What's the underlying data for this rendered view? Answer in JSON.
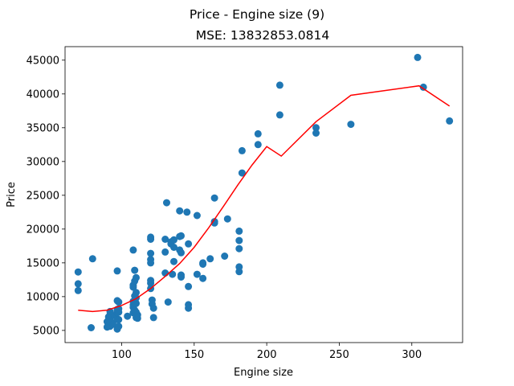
{
  "chart_data": {
    "type": "scatter",
    "title": "Price - Engine size (9)",
    "subtitle": "MSE: 13832853.0814",
    "xlabel": "Engine size",
    "ylabel": "Price",
    "xlim": [
      61,
      335
    ],
    "ylim": [
      3200,
      47000
    ],
    "xticks": [
      100,
      150,
      200,
      250,
      300
    ],
    "yticks": [
      5000,
      10000,
      15000,
      20000,
      25000,
      30000,
      35000,
      40000,
      45000
    ],
    "scatter_color": "#1f77b4",
    "line_color": "#ff0000",
    "series": [
      {
        "name": "data",
        "kind": "scatter",
        "points": [
          [
            70,
            13650
          ],
          [
            70,
            11900
          ],
          [
            70,
            10900
          ],
          [
            79,
            5400
          ],
          [
            80,
            15600
          ],
          [
            90,
            5500
          ],
          [
            90,
            6300
          ],
          [
            91,
            5700
          ],
          [
            91,
            7000
          ],
          [
            92,
            6800
          ],
          [
            92,
            5600
          ],
          [
            92,
            7300
          ],
          [
            92,
            7800
          ],
          [
            93,
            6200
          ],
          [
            94,
            5900
          ],
          [
            95,
            7200
          ],
          [
            97,
            7600
          ],
          [
            97,
            7900
          ],
          [
            97,
            6600
          ],
          [
            97,
            8100
          ],
          [
            97,
            5200
          ],
          [
            97,
            9400
          ],
          [
            97,
            13800
          ],
          [
            98,
            8200
          ],
          [
            98,
            6600
          ],
          [
            98,
            9200
          ],
          [
            98,
            7700
          ],
          [
            98,
            5600
          ],
          [
            104,
            7100
          ],
          [
            108,
            16900
          ],
          [
            108,
            11400
          ],
          [
            108,
            9300
          ],
          [
            108,
            8800
          ],
          [
            108,
            7600
          ],
          [
            108,
            11700
          ],
          [
            108,
            8400
          ],
          [
            109,
            13900
          ],
          [
            109,
            12300
          ],
          [
            109,
            10100
          ],
          [
            109,
            8000
          ],
          [
            110,
            9000
          ],
          [
            110,
            12800
          ],
          [
            110,
            10600
          ],
          [
            110,
            9800
          ],
          [
            110,
            7700
          ],
          [
            110,
            6900
          ],
          [
            111,
            7300
          ],
          [
            111,
            6800
          ],
          [
            120,
            18500
          ],
          [
            120,
            18800
          ],
          [
            120,
            16400
          ],
          [
            120,
            15500
          ],
          [
            120,
            15000
          ],
          [
            120,
            12400
          ],
          [
            120,
            11200
          ],
          [
            120,
            12000
          ],
          [
            121,
            9500
          ],
          [
            121,
            8900
          ],
          [
            122,
            6900
          ],
          [
            122,
            8300
          ],
          [
            130,
            18500
          ],
          [
            130,
            16600
          ],
          [
            130,
            13500
          ],
          [
            131,
            23900
          ],
          [
            132,
            9200
          ],
          [
            134,
            18100
          ],
          [
            134,
            17800
          ],
          [
            135,
            13300
          ],
          [
            136,
            17300
          ],
          [
            136,
            15200
          ],
          [
            136,
            18400
          ],
          [
            140,
            22700
          ],
          [
            140,
            18900
          ],
          [
            140,
            16900
          ],
          [
            141,
            19000
          ],
          [
            141,
            13200
          ],
          [
            141,
            16500
          ],
          [
            141,
            12900
          ],
          [
            145,
            22500
          ],
          [
            146,
            17800
          ],
          [
            146,
            11500
          ],
          [
            146,
            8800
          ],
          [
            146,
            8300
          ],
          [
            152,
            22000
          ],
          [
            152,
            13300
          ],
          [
            156,
            15000
          ],
          [
            156,
            14800
          ],
          [
            156,
            12700
          ],
          [
            161,
            15600
          ],
          [
            164,
            24600
          ],
          [
            164,
            21100
          ],
          [
            164,
            20900
          ],
          [
            171,
            16000
          ],
          [
            173,
            21500
          ],
          [
            181,
            19700
          ],
          [
            181,
            18300
          ],
          [
            181,
            17100
          ],
          [
            181,
            14400
          ],
          [
            181,
            13700
          ],
          [
            183,
            31600
          ],
          [
            183,
            28300
          ],
          [
            194,
            34100
          ],
          [
            194,
            32500
          ],
          [
            209,
            41300
          ],
          [
            209,
            36900
          ],
          [
            234,
            35000
          ],
          [
            234,
            34200
          ],
          [
            258,
            35500
          ],
          [
            304,
            45400
          ],
          [
            308,
            41000
          ],
          [
            326,
            36000
          ]
        ]
      },
      {
        "name": "fit",
        "kind": "line",
        "points": [
          [
            70,
            8000
          ],
          [
            80,
            7800
          ],
          [
            90,
            8000
          ],
          [
            100,
            8700
          ],
          [
            110,
            9700
          ],
          [
            120,
            11200
          ],
          [
            130,
            13000
          ],
          [
            140,
            14900
          ],
          [
            150,
            17300
          ],
          [
            160,
            20200
          ],
          [
            170,
            23300
          ],
          [
            180,
            26500
          ],
          [
            190,
            29500
          ],
          [
            200,
            32200
          ],
          [
            210,
            30800
          ],
          [
            234,
            35900
          ],
          [
            258,
            39800
          ],
          [
            305,
            41200
          ],
          [
            326,
            38200
          ]
        ]
      }
    ]
  }
}
